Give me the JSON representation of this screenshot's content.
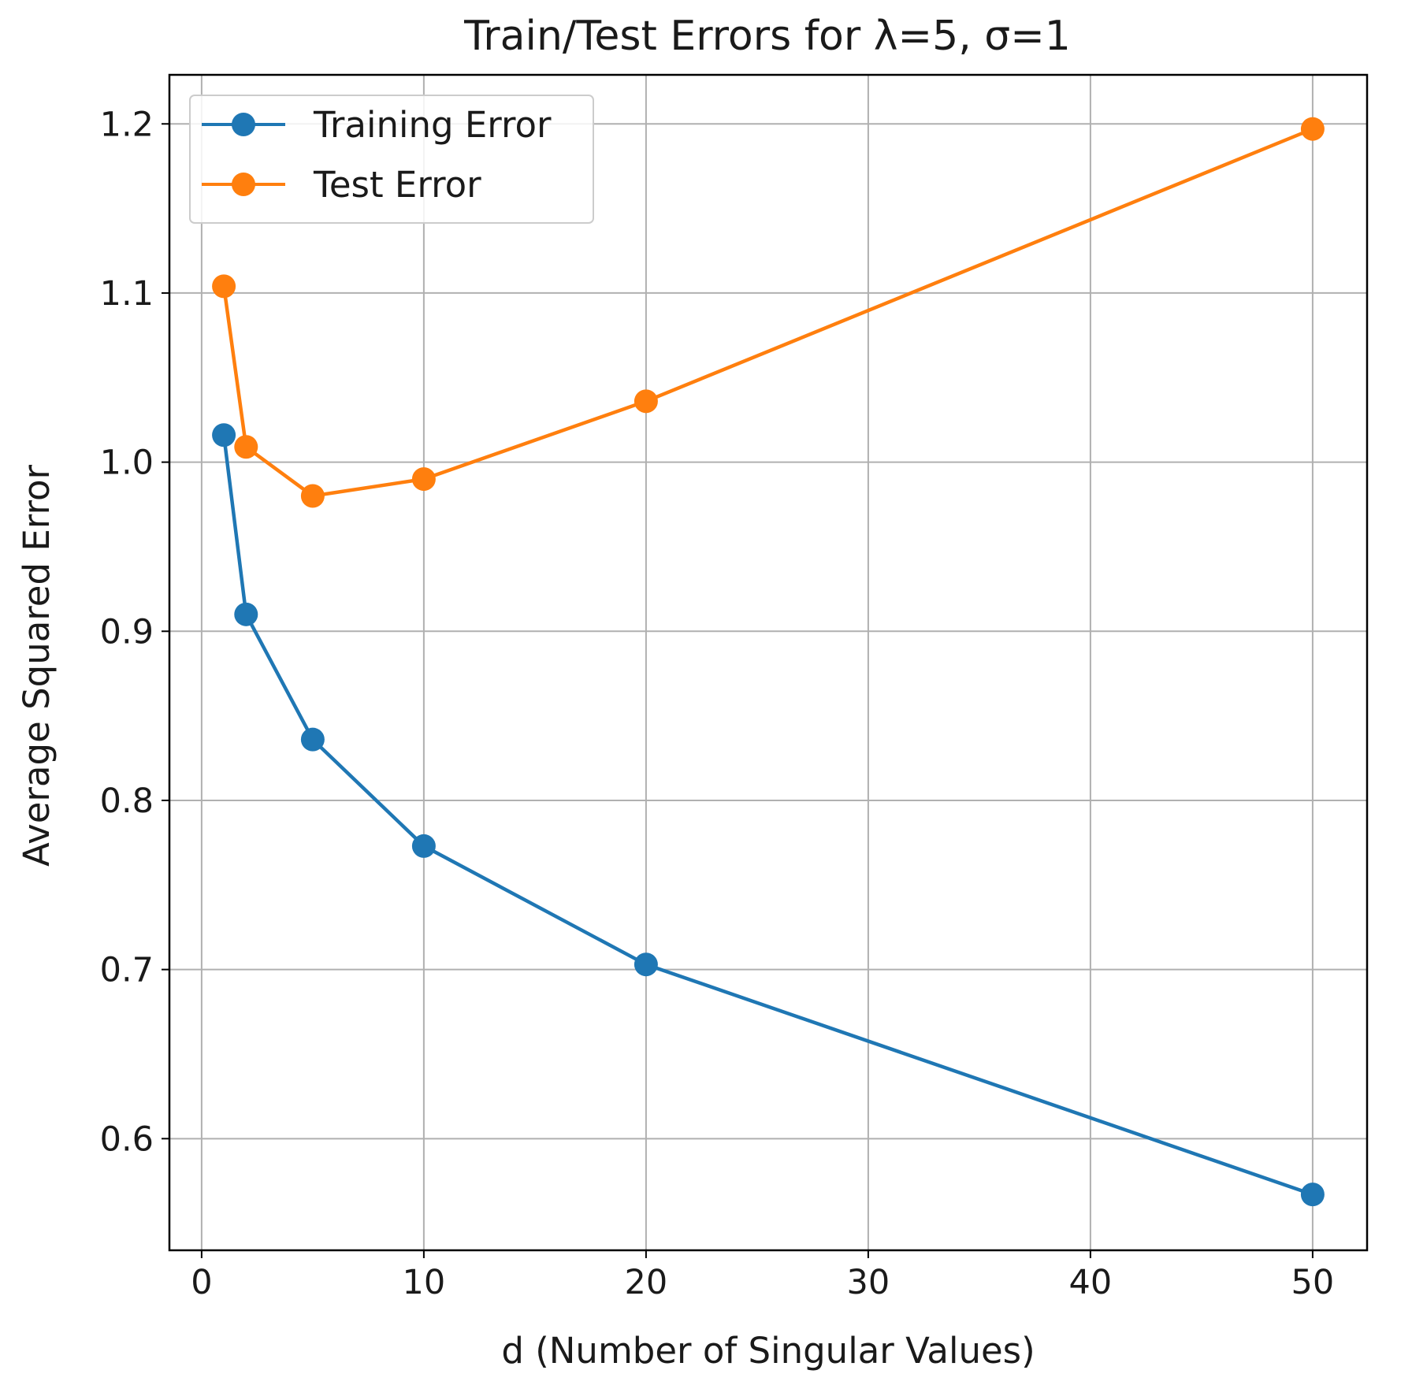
{
  "chart_data": {
    "type": "line",
    "title": "Train/Test Errors for λ=5, σ=1",
    "xlabel": "d (Number of Singular Values)",
    "ylabel": "Average Squared Error",
    "x": [
      1,
      2,
      5,
      10,
      20,
      50
    ],
    "xlim": [
      -1.45,
      52.45
    ],
    "ylim": [
      0.534,
      1.229
    ],
    "xticks": [
      0,
      10,
      20,
      30,
      40,
      50
    ],
    "xtick_labels": [
      "0",
      "10",
      "20",
      "30",
      "40",
      "50"
    ],
    "yticks": [
      0.6,
      0.7,
      0.8,
      0.9,
      1.0,
      1.1,
      1.2
    ],
    "ytick_labels": [
      "0.6",
      "0.7",
      "0.8",
      "0.9",
      "1.0",
      "1.1",
      "1.2"
    ],
    "grid": true,
    "legend_position": "upper-left",
    "series": [
      {
        "name": "Training Error",
        "color": "#1f77b4",
        "marker": "circle",
        "values": [
          1.016,
          0.91,
          0.836,
          0.773,
          0.703,
          0.567
        ]
      },
      {
        "name": "Test Error",
        "color": "#ff7f0e",
        "marker": "circle",
        "values": [
          1.104,
          1.009,
          0.98,
          0.99,
          1.036,
          1.197
        ]
      }
    ]
  }
}
